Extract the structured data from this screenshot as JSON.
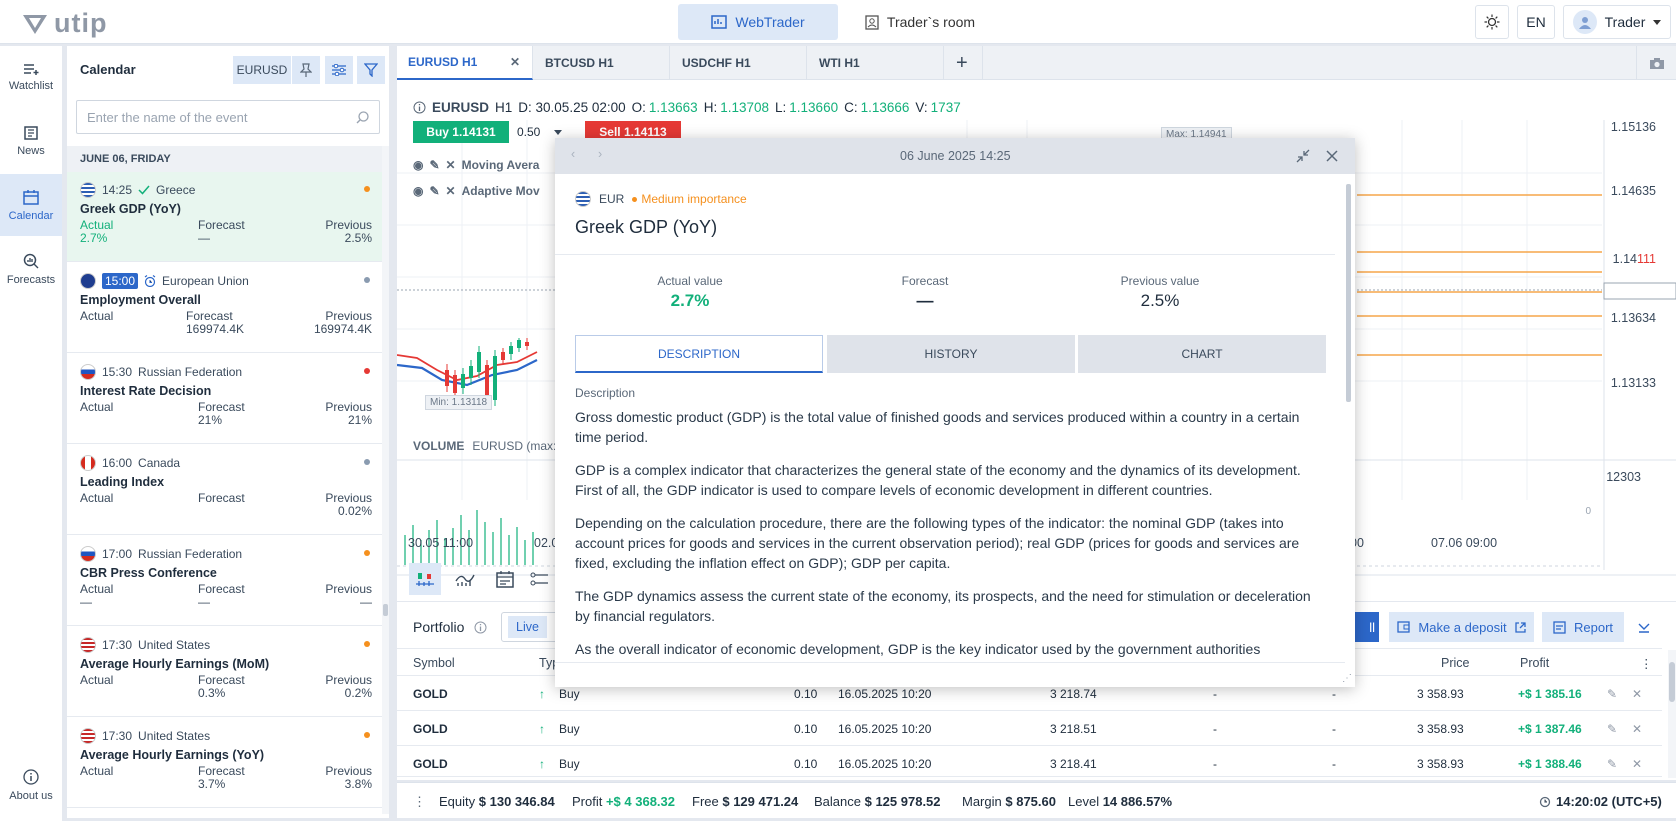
{
  "header": {
    "logo": "utip",
    "tab_webtrader": "WebTrader",
    "tab_room": "Trader`s room",
    "lang": "EN",
    "user": "Trader"
  },
  "nav": [
    {
      "label": "Watchlist",
      "icon": "watchlist-icon"
    },
    {
      "label": "News",
      "icon": "news-icon"
    },
    {
      "label": "Calendar",
      "icon": "calendar-icon"
    },
    {
      "label": "Forecasts",
      "icon": "forecasts-icon"
    },
    {
      "label": "About us",
      "icon": "info-icon"
    }
  ],
  "calendar": {
    "title": "Calendar",
    "symbol": "EURUSD",
    "search_placeholder": "Enter the name of the event",
    "date": "JUNE 06, FRIDAY",
    "events": [
      {
        "time": "14:25",
        "country": "Greece",
        "name": "Greek GDP (YoY)",
        "actual": "2.7%",
        "forecast": "—",
        "previous": "2.5%",
        "dot": "#f5901e"
      },
      {
        "time": "15:00",
        "country": "European Union",
        "name": "Employment Overall",
        "actual": "",
        "forecast": "169974.4K",
        "previous": "169974.4K",
        "dot": "#8a9bb0"
      },
      {
        "time": "15:30",
        "country": "Russian Federation",
        "name": "Interest Rate Decision",
        "actual": "",
        "forecast": "21%",
        "previous": "21%",
        "dot": "#e53935"
      },
      {
        "time": "16:00",
        "country": "Canada",
        "name": "Leading Index",
        "actual": "",
        "forecast": "",
        "previous": "0.02%",
        "dot": "#8a9bb0"
      },
      {
        "time": "17:00",
        "country": "Russian Federation",
        "name": "CBR Press Conference",
        "actual": "—",
        "forecast": "—",
        "previous": "—",
        "dot": "#f5901e"
      },
      {
        "time": "17:30",
        "country": "United States",
        "name": "Average Hourly Earnings (MoM)",
        "actual": "",
        "forecast": "0.3%",
        "previous": "0.2%",
        "dot": "#f5901e"
      },
      {
        "time": "17:30",
        "country": "United States",
        "name": "Average Hourly Earnings (YoY)",
        "actual": "",
        "forecast": "3.7%",
        "previous": "3.8%",
        "dot": "#f5901e"
      }
    ],
    "labels": {
      "actual": "Actual",
      "forecast": "Forecast",
      "previous": "Previous"
    }
  },
  "chart": {
    "tabs": [
      "EURUSD H1",
      "BTCUSD H1",
      "USDCHF H1",
      "WTI H1"
    ],
    "info": {
      "symbol": "EURUSD",
      "tf": "H1",
      "d": "D: 30.05.25 02:00",
      "o_label": "O:",
      "o": "1.13663",
      "h_label": "H:",
      "h": "1.13708",
      "l_label": "L:",
      "l": "1.13660",
      "c_label": "C:",
      "c": "1.13666",
      "v_label": "V:",
      "v": "1737"
    },
    "buy": "Buy 1.14131",
    "lot": "0.50",
    "sell": "Sell 1.14113",
    "indicators": [
      "Moving Avera",
      "Adaptive Mov"
    ],
    "max": "Max: 1.14941",
    "min": "Min: 1.13118",
    "prices": [
      "1.15136",
      "1.14635",
      "1.14111",
      "1.13634",
      "1.13133"
    ],
    "current_price_main": "1.14",
    "current_price_tail": "111",
    "volume_label": "VOLUME",
    "volume_sub": "EURUSD (max:",
    "volume_val": "12303",
    "vol_zero": "0",
    "times": [
      "30.05 11:00",
      "02.0",
      "00",
      "07.06 09:00"
    ]
  },
  "portfolio": {
    "title": "Portfolio",
    "live": "Live",
    "deposit": "Make a deposit",
    "report": "Report",
    "headers": [
      "Symbol",
      "Typ",
      "Price",
      "Profit"
    ],
    "rows": [
      {
        "symbol": "GOLD",
        "type": "Buy",
        "vol": "0.10",
        "time": "16.05.2025 10:20",
        "open": "3 218.74",
        "sl": "-",
        "tp": "-",
        "price": "3 358.93",
        "profit": "+$ 1 385.16"
      },
      {
        "symbol": "GOLD",
        "type": "Buy",
        "vol": "0.10",
        "time": "16.05.2025 10:20",
        "open": "3 218.51",
        "sl": "-",
        "tp": "-",
        "price": "3 358.93",
        "profit": "+$ 1 387.46"
      },
      {
        "symbol": "GOLD",
        "type": "Buy",
        "vol": "0.10",
        "time": "16.05.2025 10:20",
        "open": "3 218.41",
        "sl": "-",
        "tp": "-",
        "price": "3 358.93",
        "profit": "+$ 1 388.46"
      }
    ]
  },
  "status": {
    "equity_l": "Equity",
    "equity": "$ 130 346.84",
    "profit_l": "Profit",
    "profit": "+$ 4 368.32",
    "free_l": "Free",
    "free": "$ 129 471.24",
    "balance_l": "Balance",
    "balance": "$ 125 978.52",
    "margin_l": "Margin",
    "margin": "$ 875.60",
    "level_l": "Level",
    "level": "14 886.57%",
    "clock": "14:20:02 (UTC+5)"
  },
  "modal": {
    "datetime": "06 June 2025 14:25",
    "currency": "EUR",
    "importance": "Medium importance",
    "title": "Greek GDP (YoY)",
    "actual_l": "Actual value",
    "actual": "2.7%",
    "forecast_l": "Forecast",
    "forecast": "—",
    "previous_l": "Previous value",
    "previous": "2.5%",
    "tabs": [
      "DESCRIPTION",
      "HISTORY",
      "CHART"
    ],
    "desc_label": "Description",
    "paragraphs": [
      "Gross domestic product (GDP) is the total value of finished goods and services produced within a country in a certain time period.",
      "GDP is a complex indicator that characterizes the general state of the economy and the dynamics of its development. First of all, the GDP indicator is used to compare levels of economic development in different countries.",
      "Depending on the calculation procedure, there are the following types of the indicator: the nominal GDP (takes into account prices for goods and services in the current observation period); real GDP (prices for goods and services are fixed, excluding the inflation effect on GDP); GDP per capita.",
      "The GDP dynamics assess the current state of the economy, its prospects, and the need for stimulation or deceleration by financial regulators.",
      "As the overall indicator of economic development, GDP is the key indicator used by the government authorities"
    ]
  }
}
